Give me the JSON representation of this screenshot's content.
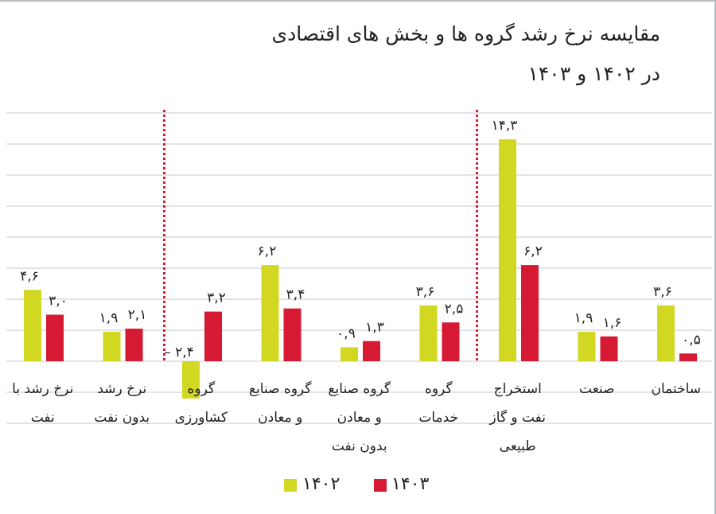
{
  "chart_data": {
    "type": "bar",
    "title": "مقایسه نرخ رشد گروه ها و بخش های اقتصادی",
    "subtitle": "در ۱۴۰۲ و ۱۴۰۳",
    "direction": "right-to-left",
    "categories": [
      [
        "ساختمان"
      ],
      [
        "صنعت"
      ],
      [
        "استخراج",
        "نفت و گاز",
        "طبیعی"
      ],
      [
        "گروه",
        "خدمات"
      ],
      [
        "گروه صنایع",
        "و معادن",
        "بدون نفت"
      ],
      [
        "گروه صنایع",
        "و معادن"
      ],
      [
        "گروه",
        "کشاورزی"
      ],
      [
        "نرخ رشد",
        "بدون نفت"
      ],
      [
        "نرخ رشد با",
        "نفت"
      ]
    ],
    "series": [
      {
        "name": "۱۴۰۲",
        "color": "#d2d722",
        "values": [
          3.6,
          1.9,
          14.3,
          3.6,
          0.9,
          6.2,
          -2.4,
          1.9,
          4.6
        ],
        "labels": [
          "۳,۶",
          "۱,۹",
          "۱۴,۳",
          "۳,۶",
          "۰,۹",
          "۶,۲",
          "– ۲,۴",
          "۱,۹",
          "۴,۶"
        ]
      },
      {
        "name": "۱۴۰۳",
        "color": "#d71a33",
        "values": [
          0.5,
          1.6,
          6.2,
          2.5,
          1.3,
          3.4,
          3.2,
          2.1,
          3.0
        ],
        "labels": [
          "۰,۵",
          "۱,۶",
          "۶,۲",
          "۲,۵",
          "۱,۳",
          "۳,۴",
          "۳,۲",
          "۲,۱",
          "۳,۰"
        ]
      }
    ],
    "ylim": [
      -4,
      16
    ],
    "grid": true,
    "grid_step": 2,
    "y_ticks_shown": false,
    "separators_after_categories": [
      2,
      6
    ],
    "separator_color": "#d71a33",
    "legend_position": "bottom"
  }
}
